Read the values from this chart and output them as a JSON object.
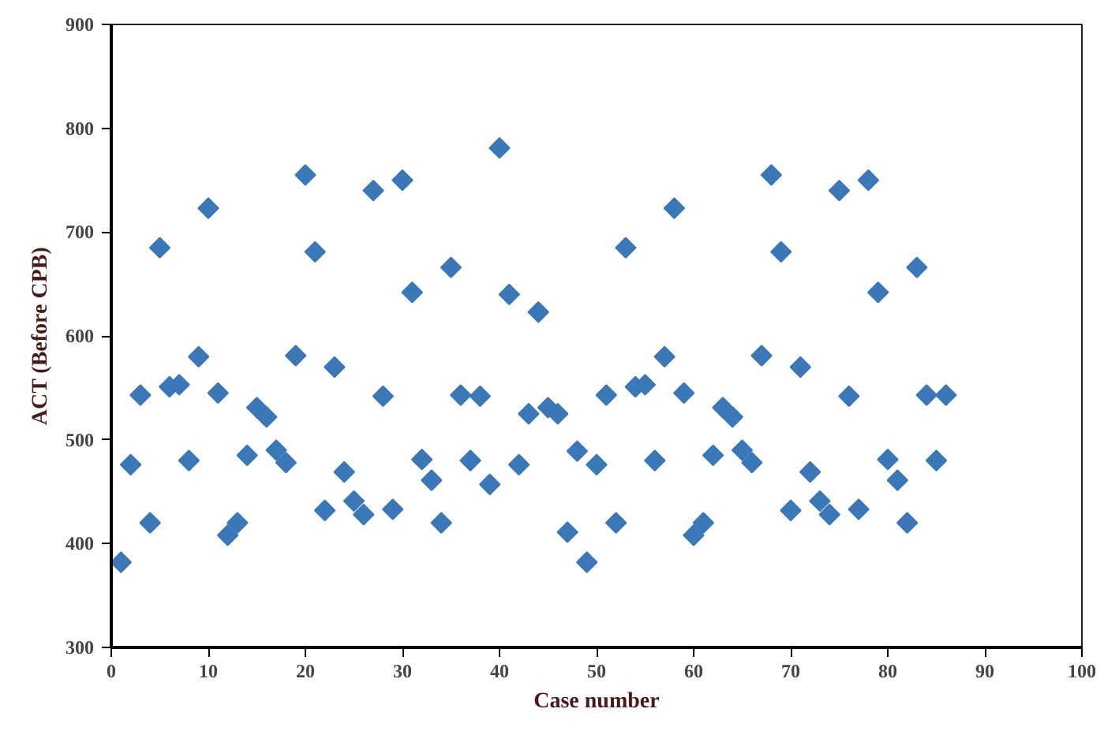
{
  "chart_data": {
    "type": "scatter",
    "xlabel": "Case number",
    "ylabel": "ACT (Before CPB)",
    "x": [
      1,
      2,
      3,
      4,
      5,
      6,
      7,
      8,
      9,
      10,
      11,
      12,
      13,
      14,
      15,
      16,
      17,
      18,
      19,
      20,
      21,
      22,
      23,
      24,
      25,
      26,
      27,
      28,
      29,
      30,
      31,
      32,
      33,
      34,
      35,
      36,
      37,
      38,
      39,
      40,
      41,
      42,
      43,
      44,
      45,
      46,
      47,
      48,
      49,
      50,
      51,
      52,
      53,
      54,
      55,
      56,
      57,
      58,
      59,
      60,
      61,
      62,
      63,
      64,
      65,
      66,
      67,
      68,
      69,
      70,
      71,
      72,
      73,
      74,
      75,
      76,
      77,
      78,
      79,
      80,
      81,
      82,
      83,
      84,
      85,
      86
    ],
    "series": [
      {
        "color": "#3a78b8",
        "values": [
          382,
          476,
          543,
          420,
          685,
          551,
          553,
          480,
          580,
          723,
          545,
          408,
          420,
          485,
          531,
          522,
          490,
          478,
          581,
          755,
          681,
          432,
          570,
          469,
          441,
          428,
          740,
          542,
          433,
          750,
          642,
          481,
          461,
          420,
          666,
          543,
          480,
          542,
          457,
          781,
          640,
          476,
          525,
          623,
          531,
          525,
          411,
          489,
          382,
          476,
          543,
          420,
          685,
          551,
          553,
          480,
          580,
          723,
          545,
          408,
          420,
          485,
          531,
          522,
          490,
          478,
          581,
          755,
          681,
          432,
          570,
          469,
          441,
          428,
          740,
          542,
          433,
          750,
          642,
          481,
          461,
          420,
          666,
          543,
          480,
          543
        ]
      }
    ],
    "xlim": [
      0,
      100
    ],
    "xticks": [
      0,
      10,
      20,
      30,
      40,
      50,
      60,
      70,
      80,
      90,
      100
    ],
    "ylim": [
      300,
      900
    ],
    "yticks": [
      300,
      400,
      500,
      600,
      700,
      800,
      900
    ],
    "marker": "diamond",
    "grid": false
  }
}
